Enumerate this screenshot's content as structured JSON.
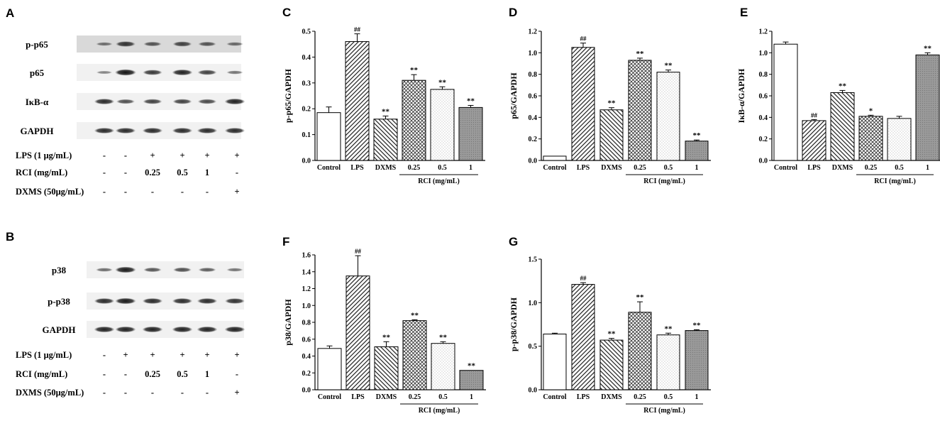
{
  "figure_panels": {
    "A": {
      "label": "A",
      "blots": [
        {
          "name": "p-p65",
          "bands": [
            0.35,
            0.8,
            0.55,
            0.7,
            0.55,
            0.4
          ]
        },
        {
          "name": "p65",
          "bands": [
            0.25,
            1.0,
            0.75,
            0.9,
            0.7,
            0.35
          ]
        },
        {
          "name": "IκB-α",
          "bands": [
            0.85,
            0.6,
            0.7,
            0.7,
            0.65,
            0.9
          ]
        },
        {
          "name": "GAPDH",
          "bands": [
            0.85,
            0.85,
            0.85,
            0.85,
            0.85,
            0.85
          ]
        }
      ],
      "conditions": [
        {
          "name": "LPS (1 μg/mL)",
          "values": [
            "-",
            "-",
            "+",
            "+",
            "+",
            "+"
          ]
        },
        {
          "name": "RCI (mg/mL)",
          "values": [
            "-",
            "-",
            "0.25",
            "0.5",
            "1",
            "-"
          ]
        },
        {
          "name": "DXMS (50μg/mL)",
          "values": [
            "-",
            "-",
            "-",
            "-",
            "-",
            "+"
          ]
        }
      ]
    },
    "B": {
      "label": "B",
      "blots": [
        {
          "name": "p38",
          "bands": [
            0.4,
            0.95,
            0.55,
            0.6,
            0.5,
            0.35
          ]
        },
        {
          "name": "p-p38",
          "bands": [
            0.85,
            0.95,
            0.85,
            0.85,
            0.85,
            0.8
          ]
        },
        {
          "name": "GAPDH",
          "bands": [
            0.9,
            0.9,
            0.9,
            0.9,
            0.9,
            0.9
          ]
        }
      ],
      "conditions": [
        {
          "name": "LPS (1 μg/mL)",
          "values": [
            "-",
            "+",
            "+",
            "+",
            "+",
            "+"
          ]
        },
        {
          "name": "RCI (mg/mL)",
          "values": [
            "-",
            "-",
            "0.25",
            "0.5",
            "1",
            "-"
          ]
        },
        {
          "name": "DXMS (50μg/mL)",
          "values": [
            "-",
            "-",
            "-",
            "-",
            "-",
            "+"
          ]
        }
      ]
    }
  },
  "chart_data": [
    {
      "panel": "C",
      "type": "bar",
      "ylabel": "p-p65/GAPDH",
      "categories": [
        "Control",
        "LPS",
        "DXMS",
        "0.25",
        "0.5",
        "1"
      ],
      "values": [
        0.185,
        0.46,
        0.16,
        0.31,
        0.275,
        0.205
      ],
      "errors": [
        0.022,
        0.03,
        0.012,
        0.022,
        0.01,
        0.008
      ],
      "annotations": [
        "",
        "##",
        "**",
        "**",
        "**",
        "**"
      ],
      "patterns": [
        "white",
        "diag",
        "anti",
        "cross",
        "dots",
        "grey"
      ],
      "ylim": [
        0,
        0.5
      ],
      "ticks": [
        "0.0",
        "0.1",
        "0.2",
        "0.3",
        "0.4",
        "0.5"
      ],
      "group_label": "RCI (mg/mL)"
    },
    {
      "panel": "D",
      "type": "bar",
      "ylabel": "p65/GAPDH",
      "categories": [
        "Control",
        "LPS",
        "DXMS",
        "0.25",
        "0.5",
        "1"
      ],
      "values": [
        0.04,
        1.05,
        0.47,
        0.93,
        0.82,
        0.18
      ],
      "errors": [
        0.0,
        0.04,
        0.02,
        0.02,
        0.02,
        0.01
      ],
      "annotations": [
        "",
        "##",
        "**",
        "**",
        "**",
        "**"
      ],
      "patterns": [
        "white",
        "diag",
        "anti",
        "cross",
        "dots",
        "grey"
      ],
      "ylim": [
        0,
        1.2
      ],
      "ticks": [
        "0.0",
        "0.2",
        "0.4",
        "0.6",
        "0.8",
        "1.0",
        "1.2"
      ],
      "group_label": "RCI (mg/mL)"
    },
    {
      "panel": "E",
      "type": "bar",
      "ylabel": "IκB-α/GAPDH",
      "categories": [
        "Control",
        "LPS",
        "DXMS",
        "0.25",
        "0.5",
        "1"
      ],
      "values": [
        1.08,
        0.37,
        0.63,
        0.41,
        0.39,
        0.98
      ],
      "errors": [
        0.02,
        0.01,
        0.02,
        0.01,
        0.02,
        0.02
      ],
      "annotations": [
        "",
        "##",
        "**",
        "*",
        "",
        "**"
      ],
      "patterns": [
        "white",
        "diag",
        "anti",
        "cross",
        "dots",
        "grey"
      ],
      "ylim": [
        0,
        1.2
      ],
      "ticks": [
        "0.0",
        "0.2",
        "0.4",
        "0.6",
        "0.8",
        "1.0",
        "1.2"
      ],
      "group_label": "RCI (mg/mL)"
    },
    {
      "panel": "F",
      "type": "bar",
      "ylabel": "p38/GAPDH",
      "categories": [
        "Control",
        "LPS",
        "DXMS",
        "0.25",
        "0.5",
        "1"
      ],
      "values": [
        0.49,
        1.35,
        0.51,
        0.82,
        0.55,
        0.23
      ],
      "errors": [
        0.03,
        0.24,
        0.06,
        0.01,
        0.02,
        0.0
      ],
      "annotations": [
        "",
        "##",
        "**",
        "**",
        "**",
        "**"
      ],
      "patterns": [
        "white",
        "diag",
        "anti",
        "cross",
        "dots",
        "grey"
      ],
      "ylim": [
        0,
        1.6
      ],
      "ticks": [
        "0.0",
        "0.2",
        "0.4",
        "0.6",
        "0.8",
        "1.0",
        "1.2",
        "1.4",
        "1.6"
      ],
      "group_label": "RCI (mg/mL)"
    },
    {
      "panel": "G",
      "type": "bar",
      "ylabel": "p-p38/GAPDH",
      "categories": [
        "Control",
        "LPS",
        "DXMS",
        "0.25",
        "0.5",
        "1"
      ],
      "values": [
        0.64,
        1.21,
        0.57,
        0.89,
        0.63,
        0.68
      ],
      "errors": [
        0.01,
        0.02,
        0.02,
        0.12,
        0.02,
        0.01
      ],
      "annotations": [
        "",
        "##",
        "**",
        "**",
        "**",
        "**"
      ],
      "patterns": [
        "white",
        "diag",
        "anti",
        "cross",
        "dots",
        "grey"
      ],
      "ylim": [
        0,
        1.5
      ],
      "ticks": [
        "0.0",
        "0.5",
        "1.0",
        "1.5"
      ],
      "group_label": "RCI (mg/mL)"
    }
  ]
}
